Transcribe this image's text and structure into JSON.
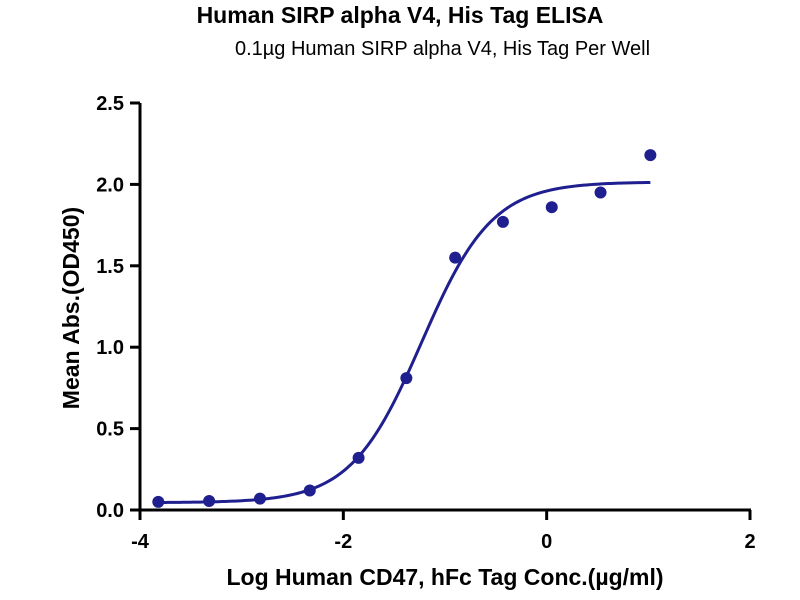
{
  "chart_data": {
    "type": "scatter",
    "title": "Human SIRP alpha V4, His Tag ELISA",
    "subtitle": "0.1µg Human SIRP alpha V4, His Tag Per Well",
    "xlabel": "Log Human CD47, hFc Tag Conc.(µg/ml)",
    "ylabel": "Mean Abs.(OD450)",
    "xlim": [
      -4,
      2
    ],
    "ylim": [
      0,
      2.5
    ],
    "x_ticks": [
      "-4",
      "-2",
      "0",
      "2"
    ],
    "y_ticks": [
      "0.0",
      "0.5",
      "1.0",
      "1.5",
      "2.0",
      "2.5"
    ],
    "grid": false,
    "colors": {
      "series": "#1f1f8f"
    },
    "series": [
      {
        "x": [
          -3.82,
          -3.32,
          -2.82,
          -2.33,
          -1.85,
          -1.38,
          -0.9,
          -0.43,
          0.05,
          0.53,
          1.02
        ],
        "y": [
          0.05,
          0.055,
          0.07,
          0.12,
          0.32,
          0.81,
          1.55,
          1.77,
          1.86,
          1.95,
          2.18
        ]
      }
    ],
    "fit_curve": {
      "model": "4PL",
      "bottom": 0.045,
      "top": 2.015,
      "log_ec50": -1.23,
      "hill_slope": 1.25,
      "x_range": [
        -3.82,
        1.02
      ]
    }
  }
}
